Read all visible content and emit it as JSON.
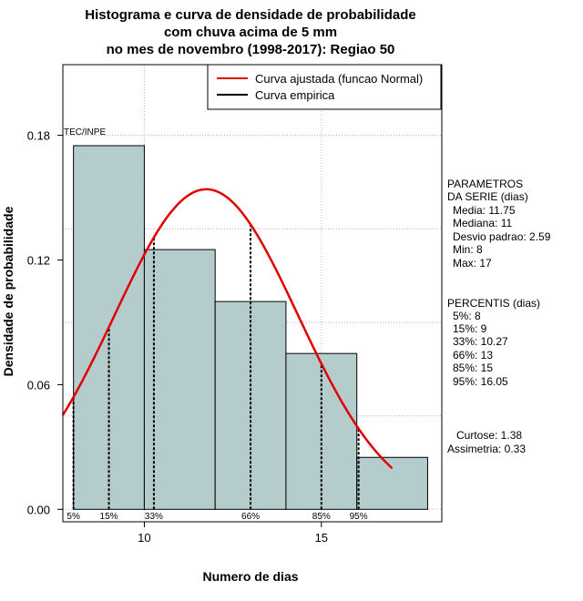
{
  "chart_data": {
    "type": "bar",
    "title": [
      "Histograma e curva de densidade de probabilidade",
      "com chuva acima de 5 mm",
      "no mes de novembro (1998-2017): Regiao 50"
    ],
    "xlabel": "Numero de dias",
    "ylabel": "Densidade de probabilidade",
    "xlim": [
      7.7,
      18.4
    ],
    "ylim": [
      -0.006,
      0.214
    ],
    "xticks": [
      10,
      15
    ],
    "yticks": [
      0.0,
      0.06,
      0.12,
      0.18
    ],
    "ytick_labels": [
      "0.00",
      "0.06",
      "0.12",
      "0.18"
    ],
    "bins": [
      {
        "from": 8,
        "to": 10,
        "density": 0.175
      },
      {
        "from": 10,
        "to": 12,
        "density": 0.125
      },
      {
        "from": 12,
        "to": 14,
        "density": 0.1
      },
      {
        "from": 14,
        "to": 16,
        "density": 0.075
      },
      {
        "from": 16,
        "to": 18,
        "density": 0.025
      }
    ],
    "bar_color": "#b5cccc",
    "normal_fit": {
      "mean": 11.75,
      "sd": 2.59,
      "x_from": 7.7,
      "x_to": 17.0,
      "color": "#e00000"
    },
    "percentile_lines": [
      {
        "label": "5%",
        "x": 8
      },
      {
        "label": "15%",
        "x": 9
      },
      {
        "label": "33%",
        "x": 10.27
      },
      {
        "label": "66%",
        "x": 13
      },
      {
        "label": "85%",
        "x": 15
      },
      {
        "label": "95%",
        "x": 16.05
      }
    ],
    "legend": {
      "position": "top-right",
      "entries": [
        {
          "label": "Curva ajustada (funcao Normal)",
          "color": "#e00000"
        },
        {
          "label": "Curva empirica",
          "color": "#000000"
        }
      ]
    },
    "annotation": "TEC/INPE",
    "grid": true
  },
  "side_panel": {
    "params_title": [
      "PARAMETROS",
      "DA SERIE (dias)"
    ],
    "params": [
      "Media: 11.75",
      "Mediana: 11",
      "Desvio padrao: 2.59",
      "Min: 8",
      "Max: 17"
    ],
    "percentiles_title": "PERCENTIS (dias)",
    "percentiles": [
      "5%: 8",
      "15%: 9",
      "33%: 10.27",
      "66%: 13",
      "85%: 15",
      "95%: 16.05"
    ],
    "shape": [
      "Curtose: 1.38",
      "Assimetria: 0.33"
    ]
  }
}
